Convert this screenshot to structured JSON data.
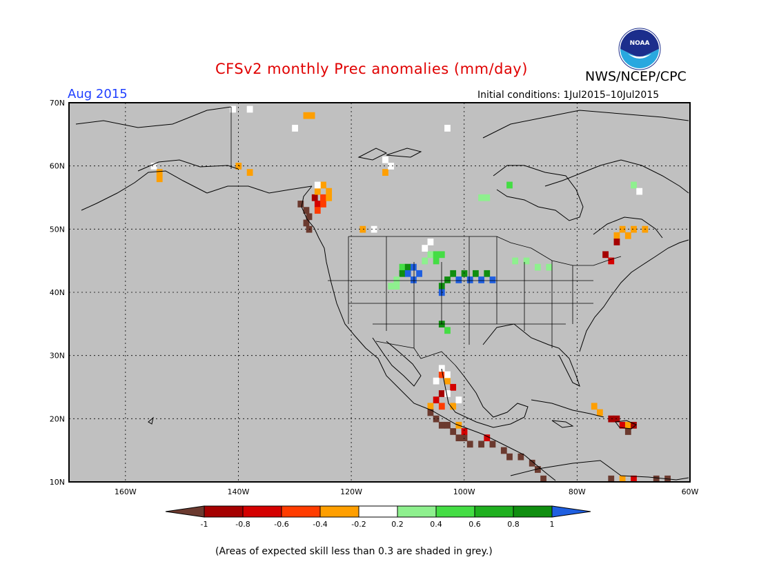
{
  "title": "CFSv2 monthly Prec anomalies (mm/day)",
  "month_label": "Aug 2015",
  "initial_conditions": "Initial conditions: 1Jul2015–10Jul2015",
  "agency": "NWS/NCEP/CPC",
  "logo_text": "NOAA",
  "footer_note": "(Areas of expected skill less than 0.3 are shaded in grey.)",
  "map": {
    "background_color": "#c0c0c0",
    "lat_labels": [
      "70N",
      "60N",
      "50N",
      "40N",
      "30N",
      "20N",
      "10N"
    ],
    "lon_labels": [
      "160W",
      "140W",
      "120W",
      "100W",
      "80W",
      "60W"
    ],
    "lat_values": [
      70,
      60,
      50,
      40,
      30,
      20,
      10
    ],
    "lon_values": [
      -160,
      -140,
      -120,
      -100,
      -80,
      -60
    ],
    "lon_range": [
      -170,
      -60
    ],
    "lat_range": [
      10,
      70
    ],
    "grid": "dotted"
  },
  "colorbar": {
    "tick_labels": [
      "-1",
      "-0.8",
      "-0.6",
      "-0.4",
      "-0.2",
      "0.2",
      "0.4",
      "0.6",
      "0.8",
      "1"
    ],
    "colors": [
      "#6b3a2f",
      "#a50000",
      "#d40000",
      "#ff3c00",
      "#ff9f00",
      "#ffffff",
      "#8ef08e",
      "#44dd44",
      "#1fb01f",
      "#108e10",
      "#1f5fe0"
    ]
  },
  "anomaly_cells": [
    {
      "lon": -129,
      "lat": 54,
      "c": "#6b3a2f"
    },
    {
      "lon": -128,
      "lat": 53,
      "c": "#6b3a2f"
    },
    {
      "lon": -127.5,
      "lat": 52,
      "c": "#6b3a2f"
    },
    {
      "lon": -128,
      "lat": 51,
      "c": "#6b3a2f"
    },
    {
      "lon": -127.5,
      "lat": 50,
      "c": "#6b3a2f"
    },
    {
      "lon": -126.5,
      "lat": 55,
      "c": "#a50000"
    },
    {
      "lon": -126,
      "lat": 54,
      "c": "#d40000"
    },
    {
      "lon": -125,
      "lat": 54,
      "c": "#ff3c00"
    },
    {
      "lon": -125,
      "lat": 55,
      "c": "#ff3c00"
    },
    {
      "lon": -126,
      "lat": 53,
      "c": "#ff3c00"
    },
    {
      "lon": -126,
      "lat": 56,
      "c": "#ff9f00"
    },
    {
      "lon": -125,
      "lat": 57,
      "c": "#ff9f00"
    },
    {
      "lon": -124,
      "lat": 56,
      "c": "#ff9f00"
    },
    {
      "lon": -124,
      "lat": 55,
      "c": "#ff9f00"
    },
    {
      "lon": -128,
      "lat": 68,
      "c": "#ff9f00"
    },
    {
      "lon": -127,
      "lat": 68,
      "c": "#ff9f00"
    },
    {
      "lon": -140,
      "lat": 60,
      "c": "#ff9f00"
    },
    {
      "lon": -138,
      "lat": 59,
      "c": "#ff9f00"
    },
    {
      "lon": -154,
      "lat": 59,
      "c": "#ff9f00"
    },
    {
      "lon": -154,
      "lat": 58,
      "c": "#ff9f00"
    },
    {
      "lon": -118,
      "lat": 50,
      "c": "#ff9f00"
    },
    {
      "lon": -114,
      "lat": 59,
      "c": "#ff9f00"
    },
    {
      "lon": -72,
      "lat": 50,
      "c": "#ff9f00"
    },
    {
      "lon": -70,
      "lat": 50,
      "c": "#ff9f00"
    },
    {
      "lon": -68,
      "lat": 50,
      "c": "#ff9f00"
    },
    {
      "lon": -73,
      "lat": 49,
      "c": "#ff9f00"
    },
    {
      "lon": -71,
      "lat": 49,
      "c": "#ff9f00"
    },
    {
      "lon": -73,
      "lat": 48,
      "c": "#a50000"
    },
    {
      "lon": -75,
      "lat": 46,
      "c": "#a50000"
    },
    {
      "lon": -74,
      "lat": 45,
      "c": "#d40000"
    },
    {
      "lon": -111,
      "lat": 44,
      "c": "#44dd44"
    },
    {
      "lon": -110,
      "lat": 44,
      "c": "#108e10"
    },
    {
      "lon": -111,
      "lat": 43,
      "c": "#108e10"
    },
    {
      "lon": -110,
      "lat": 43,
      "c": "#1f5fe0"
    },
    {
      "lon": -109,
      "lat": 42,
      "c": "#1f5fe0"
    },
    {
      "lon": -108,
      "lat": 43,
      "c": "#1f5fe0"
    },
    {
      "lon": -109,
      "lat": 44,
      "c": "#1f5fe0"
    },
    {
      "lon": -112,
      "lat": 42,
      "c": "#8ef08e"
    },
    {
      "lon": -113,
      "lat": 41,
      "c": "#8ef08e"
    },
    {
      "lon": -112,
      "lat": 41,
      "c": "#8ef08e"
    },
    {
      "lon": -107,
      "lat": 45,
      "c": "#8ef08e"
    },
    {
      "lon": -106,
      "lat": 46,
      "c": "#8ef08e"
    },
    {
      "lon": -105,
      "lat": 46,
      "c": "#44dd44"
    },
    {
      "lon": -104,
      "lat": 46,
      "c": "#44dd44"
    },
    {
      "lon": -105,
      "lat": 45,
      "c": "#44dd44"
    },
    {
      "lon": -102,
      "lat": 43,
      "c": "#108e10"
    },
    {
      "lon": -100,
      "lat": 43,
      "c": "#108e10"
    },
    {
      "lon": -98,
      "lat": 43,
      "c": "#108e10"
    },
    {
      "lon": -96,
      "lat": 43,
      "c": "#108e10"
    },
    {
      "lon": -101,
      "lat": 42,
      "c": "#1f5fe0"
    },
    {
      "lon": -99,
      "lat": 42,
      "c": "#1f5fe0"
    },
    {
      "lon": -97,
      "lat": 42,
      "c": "#1f5fe0"
    },
    {
      "lon": -95,
      "lat": 42,
      "c": "#1f5fe0"
    },
    {
      "lon": -103,
      "lat": 42,
      "c": "#108e10"
    },
    {
      "lon": -104,
      "lat": 41,
      "c": "#108e10"
    },
    {
      "lon": -104,
      "lat": 40,
      "c": "#1f5fe0"
    },
    {
      "lon": -89,
      "lat": 45,
      "c": "#8ef08e"
    },
    {
      "lon": -91,
      "lat": 45,
      "c": "#8ef08e"
    },
    {
      "lon": -87,
      "lat": 44,
      "c": "#8ef08e"
    },
    {
      "lon": -85,
      "lat": 44,
      "c": "#8ef08e"
    },
    {
      "lon": -104,
      "lat": 35,
      "c": "#108e10"
    },
    {
      "lon": -103,
      "lat": 34,
      "c": "#44dd44"
    },
    {
      "lon": -104,
      "lat": 27,
      "c": "#ff3c00"
    },
    {
      "lon": -103,
      "lat": 26,
      "c": "#ff9f00"
    },
    {
      "lon": -102,
      "lat": 25,
      "c": "#d40000"
    },
    {
      "lon": -104,
      "lat": 24,
      "c": "#a50000"
    },
    {
      "lon": -105,
      "lat": 23,
      "c": "#d40000"
    },
    {
      "lon": -106,
      "lat": 22,
      "c": "#ff9f00"
    },
    {
      "lon": -104,
      "lat": 22,
      "c": "#ff3c00"
    },
    {
      "lon": -102,
      "lat": 22,
      "c": "#ff9f00"
    },
    {
      "lon": -106,
      "lat": 21,
      "c": "#6b3a2f"
    },
    {
      "lon": -105,
      "lat": 20,
      "c": "#6b3a2f"
    },
    {
      "lon": -104,
      "lat": 19,
      "c": "#6b3a2f"
    },
    {
      "lon": -103,
      "lat": 19,
      "c": "#6b3a2f"
    },
    {
      "lon": -102,
      "lat": 18,
      "c": "#6b3a2f"
    },
    {
      "lon": -101,
      "lat": 17,
      "c": "#6b3a2f"
    },
    {
      "lon": -100,
      "lat": 17,
      "c": "#6b3a2f"
    },
    {
      "lon": -99,
      "lat": 16,
      "c": "#6b3a2f"
    },
    {
      "lon": -97,
      "lat": 16,
      "c": "#6b3a2f"
    },
    {
      "lon": -95,
      "lat": 16,
      "c": "#6b3a2f"
    },
    {
      "lon": -93,
      "lat": 15,
      "c": "#6b3a2f"
    },
    {
      "lon": -92,
      "lat": 14,
      "c": "#6b3a2f"
    },
    {
      "lon": -90,
      "lat": 14,
      "c": "#6b3a2f"
    },
    {
      "lon": -88,
      "lat": 13,
      "c": "#6b3a2f"
    },
    {
      "lon": -87,
      "lat": 12,
      "c": "#6b3a2f"
    },
    {
      "lon": -86,
      "lat": 10.5,
      "c": "#6b3a2f"
    },
    {
      "lon": -101,
      "lat": 19,
      "c": "#ff9f00"
    },
    {
      "lon": -100,
      "lat": 18,
      "c": "#d40000"
    },
    {
      "lon": -96,
      "lat": 17,
      "c": "#d40000"
    },
    {
      "lon": -77,
      "lat": 22,
      "c": "#ff9f00"
    },
    {
      "lon": -76,
      "lat": 21,
      "c": "#ff9f00"
    },
    {
      "lon": -74,
      "lat": 20,
      "c": "#a50000"
    },
    {
      "lon": -73,
      "lat": 20,
      "c": "#a50000"
    },
    {
      "lon": -72,
      "lat": 19,
      "c": "#d40000"
    },
    {
      "lon": -71,
      "lat": 19,
      "c": "#ff9f00"
    },
    {
      "lon": -70,
      "lat": 19,
      "c": "#a50000"
    },
    {
      "lon": -71,
      "lat": 18,
      "c": "#6b3a2f"
    },
    {
      "lon": -74,
      "lat": 10.5,
      "c": "#6b3a2f"
    },
    {
      "lon": -72,
      "lat": 10.5,
      "c": "#ff9f00"
    },
    {
      "lon": -70,
      "lat": 10.5,
      "c": "#d40000"
    },
    {
      "lon": -66,
      "lat": 10.5,
      "c": "#6b3a2f"
    },
    {
      "lon": -64,
      "lat": 10.5,
      "c": "#6b3a2f"
    },
    {
      "lon": -92,
      "lat": 57,
      "c": "#44dd44"
    },
    {
      "lon": -97,
      "lat": 55,
      "c": "#8ef08e"
    },
    {
      "lon": -96,
      "lat": 55,
      "c": "#8ef08e"
    },
    {
      "lon": -70,
      "lat": 57,
      "c": "#8ef08e"
    }
  ],
  "white_cells": [
    {
      "lon": -141,
      "lat": 69
    },
    {
      "lon": -138,
      "lat": 69
    },
    {
      "lon": -130,
      "lat": 66
    },
    {
      "lon": -113,
      "lat": 60
    },
    {
      "lon": -114,
      "lat": 61
    },
    {
      "lon": -155,
      "lat": 60
    },
    {
      "lon": -126,
      "lat": 57
    },
    {
      "lon": -116,
      "lat": 50
    },
    {
      "lon": -103,
      "lat": 66
    },
    {
      "lon": -69,
      "lat": 56
    },
    {
      "lon": -107,
      "lat": 47
    },
    {
      "lon": -106,
      "lat": 48
    },
    {
      "lon": -104,
      "lat": 28
    },
    {
      "lon": -103,
      "lat": 27
    },
    {
      "lon": -105,
      "lat": 26
    },
    {
      "lon": -103,
      "lat": 24
    },
    {
      "lon": -101,
      "lat": 23
    }
  ]
}
